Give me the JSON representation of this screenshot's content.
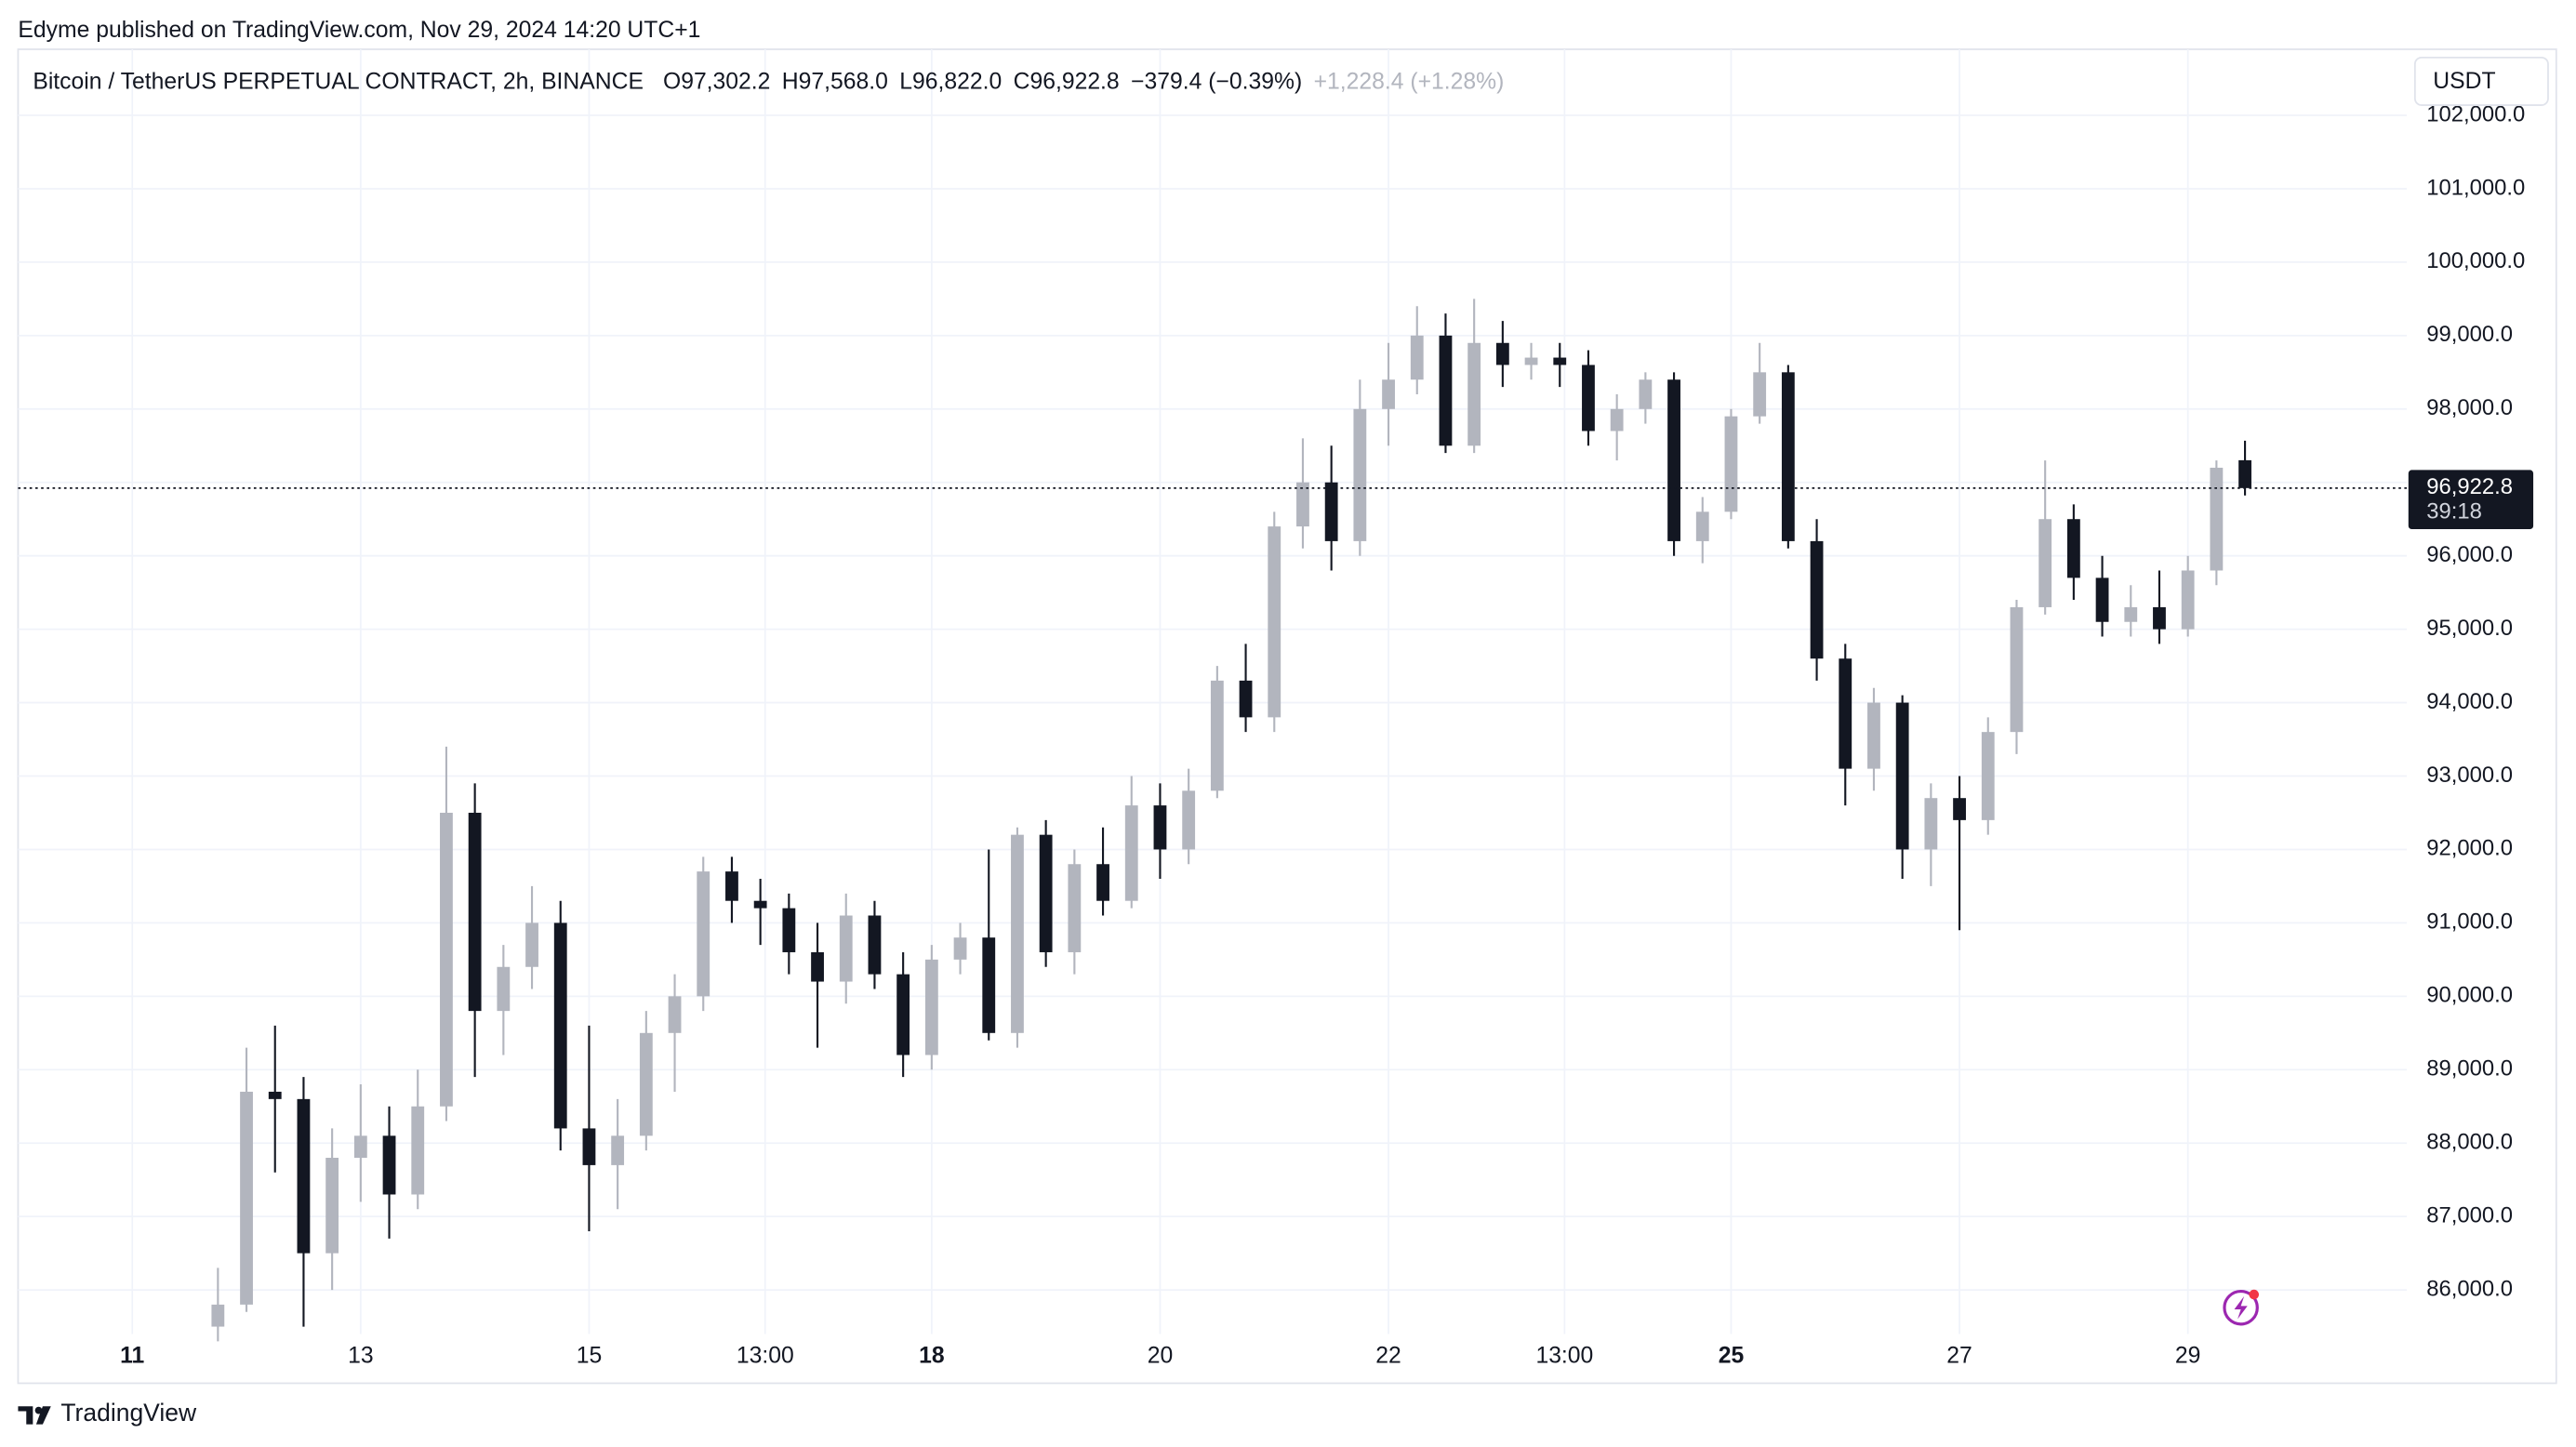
{
  "header": {
    "published": "Edyme published on TradingView.com, Nov 29, 2024 14:20 UTC+1",
    "symbol": "Bitcoin / TetherUS PERPETUAL CONTRACT, 2h, BINANCE",
    "ohlc_legend": [
      {
        "key": "O",
        "value": "97,302.2"
      },
      {
        "key": "H",
        "value": "97,568.0"
      },
      {
        "key": "L",
        "value": "96,822.0"
      },
      {
        "key": "C",
        "value": "96,922.8"
      }
    ],
    "change": "−379.4 (−0.39%)",
    "change_secondary": "+1,228.4 (+1.28%)",
    "currency": "USDT"
  },
  "footer": {
    "brand": "TradingView"
  },
  "chart_data": {
    "type": "candlestick",
    "x": [
      18,
      24,
      30,
      36,
      42,
      48,
      54,
      60,
      66,
      72,
      78,
      84,
      90,
      96,
      102,
      108,
      114,
      120,
      126,
      132,
      138,
      144,
      150,
      156,
      162,
      168,
      174,
      180,
      186,
      192,
      198,
      204,
      210,
      216,
      222,
      228,
      234,
      240,
      246,
      252,
      258,
      264,
      270,
      276,
      282,
      288,
      294,
      300,
      306,
      312,
      318,
      324,
      330,
      336,
      342,
      348,
      354,
      360,
      366,
      372,
      378,
      384,
      390,
      396,
      402,
      408,
      414,
      420,
      426,
      432,
      438,
      444
    ],
    "open": [
      85500,
      85800,
      88700,
      88600,
      86500,
      87800,
      88100,
      87300,
      88500,
      92500,
      89800,
      90400,
      91000,
      88200,
      87700,
      88100,
      89500,
      90000,
      91700,
      91300,
      91200,
      90600,
      90200,
      91100,
      90300,
      89200,
      90500,
      90800,
      89500,
      92200,
      90600,
      91800,
      91300,
      92600,
      92000,
      92800,
      94300,
      93800,
      96400,
      97000,
      96200,
      98000,
      98400,
      99000,
      97500,
      98900,
      98600,
      98700,
      98600,
      97700,
      98000,
      98400,
      96200,
      96600,
      97900,
      98500,
      96200,
      94600,
      93100,
      94000,
      92000,
      92700,
      92400,
      93600,
      95300,
      96500,
      95700,
      95100,
      95300,
      95000,
      95800,
      97302.2
    ],
    "high": [
      86300,
      89300,
      89600,
      88900,
      88200,
      88800,
      88500,
      89000,
      93400,
      92900,
      90700,
      91500,
      91300,
      89600,
      88600,
      89800,
      90300,
      91900,
      91900,
      91600,
      91400,
      91000,
      91400,
      91300,
      90600,
      90700,
      91000,
      92000,
      92300,
      92400,
      92000,
      92300,
      93000,
      92900,
      93100,
      94500,
      94800,
      96600,
      97600,
      97500,
      98400,
      98900,
      99400,
      99300,
      99500,
      99200,
      98900,
      98900,
      98800,
      98200,
      98500,
      98500,
      96800,
      98000,
      98900,
      98600,
      96500,
      94800,
      94200,
      94100,
      92900,
      93000,
      93800,
      95400,
      97300,
      96700,
      96000,
      95600,
      95800,
      96000,
      97300,
      97568
    ],
    "low": [
      85300,
      85700,
      87600,
      85500,
      86000,
      87200,
      86700,
      87100,
      88300,
      88900,
      89200,
      90100,
      87900,
      86800,
      87100,
      87900,
      88700,
      89800,
      91000,
      90700,
      90300,
      89300,
      89900,
      90100,
      88900,
      89000,
      90300,
      89400,
      89300,
      90400,
      90300,
      91100,
      91200,
      91600,
      91800,
      92700,
      93600,
      93600,
      96100,
      95800,
      96000,
      97500,
      98200,
      97400,
      97400,
      98300,
      98400,
      98300,
      97500,
      97300,
      97800,
      96000,
      95900,
      96500,
      97800,
      96100,
      94300,
      92600,
      92800,
      91600,
      91500,
      90900,
      92200,
      93300,
      95200,
      95400,
      94900,
      94900,
      94800,
      94900,
      95600,
      96822
    ],
    "close": [
      85800,
      88700,
      88600,
      86500,
      87800,
      88100,
      87300,
      88500,
      92500,
      89800,
      90400,
      91000,
      88200,
      87700,
      88100,
      89500,
      90000,
      91700,
      91300,
      91200,
      90600,
      90200,
      91100,
      90300,
      89200,
      90500,
      90800,
      89500,
      92200,
      90600,
      91800,
      91300,
      92600,
      92000,
      92800,
      94300,
      93800,
      96400,
      97000,
      96200,
      98000,
      98400,
      99000,
      97500,
      98900,
      98600,
      98700,
      98600,
      97700,
      98000,
      98400,
      96200,
      96600,
      97900,
      98500,
      96200,
      94600,
      93100,
      94000,
      92000,
      92700,
      92400,
      93600,
      95300,
      96500,
      95700,
      95100,
      95300,
      95000,
      95800,
      97200,
      96922.8
    ],
    "up_color": "#b2b5be",
    "down_color": "#131722",
    "xlim": [
      -24,
      478
    ],
    "xticks": [
      {
        "value": 0,
        "label": "11",
        "bold": true
      },
      {
        "value": 48,
        "label": "13"
      },
      {
        "value": 96,
        "label": "15"
      },
      {
        "value": 133,
        "label": "13:00"
      },
      {
        "value": 168,
        "label": "18",
        "bold": true
      },
      {
        "value": 216,
        "label": "20"
      },
      {
        "value": 264,
        "label": "22"
      },
      {
        "value": 301,
        "label": "13:00"
      },
      {
        "value": 336,
        "label": "25",
        "bold": true
      },
      {
        "value": 384,
        "label": "27"
      },
      {
        "value": 432,
        "label": "29"
      }
    ],
    "ylim": [
      85400,
      102900
    ],
    "yticks": [
      {
        "value": 86000,
        "label": "86,000.0"
      },
      {
        "value": 87000,
        "label": "87,000.0"
      },
      {
        "value": 88000,
        "label": "88,000.0"
      },
      {
        "value": 89000,
        "label": "89,000.0"
      },
      {
        "value": 90000,
        "label": "90,000.0"
      },
      {
        "value": 91000,
        "label": "91,000.0"
      },
      {
        "value": 92000,
        "label": "92,000.0"
      },
      {
        "value": 93000,
        "label": "93,000.0"
      },
      {
        "value": 94000,
        "label": "94,000.0"
      },
      {
        "value": 95000,
        "label": "95,000.0"
      },
      {
        "value": 96000,
        "label": "96,000.0"
      },
      {
        "value": 97000,
        "label": "97,000.0"
      },
      {
        "value": 98000,
        "label": "98,000.0"
      },
      {
        "value": 99000,
        "label": "99,000.0"
      },
      {
        "value": 100000,
        "label": "100,000.0"
      },
      {
        "value": 101000,
        "label": "101,000.0"
      },
      {
        "value": 102000,
        "label": "102,000.0"
      }
    ],
    "grid": true,
    "last_price": {
      "value": 96922.8,
      "label": "96,922.8"
    },
    "countdown": "39:18"
  }
}
